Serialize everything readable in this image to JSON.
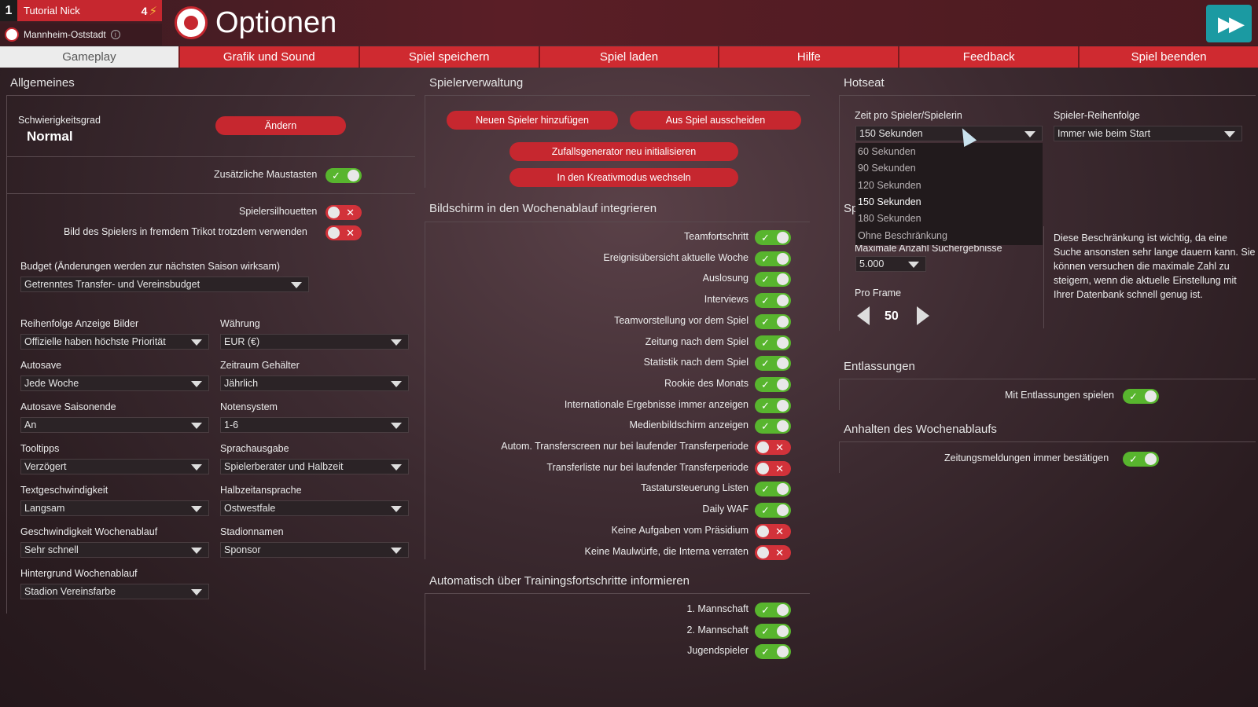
{
  "player": {
    "number": "1",
    "name": "Tutorial Nick",
    "count": "4",
    "club": "Mannheim-Oststadt"
  },
  "title": "Optionen",
  "tabs": [
    "Gameplay",
    "Grafik und Sound",
    "Spiel speichern",
    "Spiel laden",
    "Hilfe",
    "Feedback",
    "Spiel beenden"
  ],
  "allgemeines": {
    "title": "Allgemeines",
    "difficulty_label": "Schwierigkeitsgrad",
    "difficulty_value": "Normal",
    "change_button": "Ändern",
    "extra_mouse": "Zusätzliche Maustasten",
    "silhouettes": "Spielersilhouetten",
    "foreign_jersey": "Bild des Spielers in fremdem Trikot trotzdem verwenden",
    "budget_label": "Budget (Änderungen werden zur nächsten Saison wirksam)",
    "budget_value": "Getrenntes Transfer- und Vereinsbudget",
    "fields": [
      {
        "label": "Reihenfolge Anzeige Bilder",
        "value": "Offizielle haben höchste Priorität"
      },
      {
        "label": "Währung",
        "value": "EUR (€)"
      },
      {
        "label": "Autosave",
        "value": "Jede Woche"
      },
      {
        "label": "Zeitraum Gehälter",
        "value": "Jährlich"
      },
      {
        "label": "Autosave Saisonende",
        "value": "An"
      },
      {
        "label": "Notensystem",
        "value": "1-6"
      },
      {
        "label": "Tooltipps",
        "value": "Verzögert"
      },
      {
        "label": "Sprachausgabe",
        "value": "Spielerberater und Halbzeit"
      },
      {
        "label": "Textgeschwindigkeit",
        "value": "Langsam"
      },
      {
        "label": "Halbzeitansprache",
        "value": "Ostwestfale"
      },
      {
        "label": "Geschwindigkeit Wochenablauf",
        "value": "Sehr schnell"
      },
      {
        "label": "Stadionnamen",
        "value": "Sponsor"
      },
      {
        "label": "Hintergrund Wochenablauf",
        "value": "Stadion Vereinsfarbe"
      }
    ]
  },
  "spielerverwaltung": {
    "title": "Spielerverwaltung",
    "buttons": [
      "Neuen Spieler hinzufügen",
      "Aus Spiel ausscheiden",
      "Zufallsgenerator neu initialisieren",
      "In den Kreativmodus wechseln"
    ]
  },
  "wochenablauf": {
    "title": "Bildschirm in den Wochenablauf integrieren",
    "items": [
      {
        "label": "Teamfortschritt",
        "on": true
      },
      {
        "label": "Ereignisübersicht aktuelle Woche",
        "on": true
      },
      {
        "label": "Auslosung",
        "on": true
      },
      {
        "label": "Interviews",
        "on": true
      },
      {
        "label": "Teamvorstellung vor dem Spiel",
        "on": true
      },
      {
        "label": "Zeitung nach dem Spiel",
        "on": true
      },
      {
        "label": "Statistik nach dem Spiel",
        "on": true
      },
      {
        "label": "Rookie des Monats",
        "on": true
      },
      {
        "label": "Internationale Ergebnisse immer anzeigen",
        "on": true
      },
      {
        "label": "Medienbildschirm anzeigen",
        "on": true
      },
      {
        "label": "Autom. Transferscreen nur bei laufender Transferperiode",
        "on": false
      },
      {
        "label": "Transferliste nur bei laufender Transferperiode",
        "on": false
      },
      {
        "label": "Tastatursteuerung Listen",
        "on": true
      },
      {
        "label": "Daily WAF",
        "on": true
      },
      {
        "label": "Keine Aufgaben vom Präsidium",
        "on": false
      },
      {
        "label": "Keine Maulwürfe, die Interna verraten",
        "on": false
      }
    ]
  },
  "training": {
    "title": "Automatisch über Trainingsfortschritte informieren",
    "items": [
      {
        "label": "1. Mannschaft",
        "on": true
      },
      {
        "label": "2. Mannschaft",
        "on": true
      },
      {
        "label": "Jugendspieler",
        "on": true
      }
    ]
  },
  "hotseat": {
    "title": "Hotseat",
    "time_label": "Zeit pro Spieler/Spielerin",
    "time_value": "150 Sekunden",
    "order_label": "Spieler-Reihenfolge",
    "order_value": "Immer wie beim Start",
    "options": [
      "60 Sekunden",
      "90 Sekunden",
      "120 Sekunden",
      "150 Sekunden",
      "180 Sekunden",
      "Ohne Beschränkung"
    ],
    "selected_index": 3
  },
  "suche": {
    "section_partial": "Sp",
    "max_label": "Maximale Anzahl Suchergebnisse",
    "max_value": "5.000",
    "per_frame_label": "Pro Frame",
    "per_frame_value": "50",
    "info": "Diese Beschränkung ist wichtig, da eine Suche ansonsten sehr lange dauern kann. Sie können versuchen die maximale Zahl zu steigern, wenn die aktuelle Einstellung mit Ihrer Datenbank schnell genug ist."
  },
  "entlassungen": {
    "title": "Entlassungen",
    "item": "Mit Entlassungen spielen"
  },
  "anhalten": {
    "title": "Anhalten des Wochenablaufs",
    "item": "Zeitungsmeldungen immer bestätigen"
  },
  "colors": {
    "accent": "#c6272f",
    "toggle_on": "#58b52e",
    "toggle_off": "#d2323a",
    "skip": "#1b9aa2"
  }
}
